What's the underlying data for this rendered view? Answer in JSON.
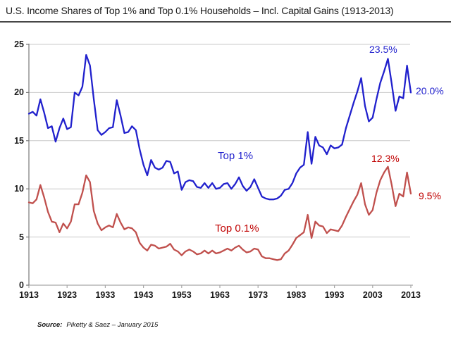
{
  "title": "U.S. Income Shares of Top 1% and Top 0.1% Households – Incl. Capital Gains (1913-2013)",
  "source": {
    "label": "Source:",
    "text": "Piketty & Saez – January 2015"
  },
  "colors": {
    "top1_line": "#2121cd",
    "top1_text": "#2121cd",
    "top01_line": "#c0504d",
    "top01_text": "#c00000",
    "gridline": "#c8c8c8",
    "x_axis": "#a8a8a8",
    "y_axis": "#787878",
    "tick": "#a8a8a8",
    "title_text": "#1a1a1a"
  },
  "chart_data": {
    "type": "line",
    "title": "U.S. Income Shares of Top 1% and Top 0.1% Households – Incl. Capital Gains (1913-2013)",
    "xlabel": "",
    "ylabel": "",
    "xlim": [
      1913,
      2013
    ],
    "ylim": [
      0,
      25
    ],
    "grid": "horizontal",
    "legend": "inline-labels",
    "y_ticks": [
      0,
      5,
      10,
      15,
      20,
      25
    ],
    "x_ticks": [
      1913,
      1923,
      1933,
      1943,
      1953,
      1963,
      1973,
      1983,
      1993,
      2003,
      2013
    ],
    "years": [
      1913,
      1914,
      1915,
      1916,
      1917,
      1918,
      1919,
      1920,
      1921,
      1922,
      1923,
      1924,
      1925,
      1926,
      1927,
      1928,
      1929,
      1930,
      1931,
      1932,
      1933,
      1934,
      1935,
      1936,
      1937,
      1938,
      1939,
      1940,
      1941,
      1942,
      1943,
      1944,
      1945,
      1946,
      1947,
      1948,
      1949,
      1950,
      1951,
      1952,
      1953,
      1954,
      1955,
      1956,
      1957,
      1958,
      1959,
      1960,
      1961,
      1962,
      1963,
      1964,
      1965,
      1966,
      1967,
      1968,
      1969,
      1970,
      1971,
      1972,
      1973,
      1974,
      1975,
      1976,
      1977,
      1978,
      1979,
      1980,
      1981,
      1982,
      1983,
      1984,
      1985,
      1986,
      1987,
      1988,
      1989,
      1990,
      1991,
      1992,
      1993,
      1994,
      1995,
      1996,
      1997,
      1998,
      1999,
      2000,
      2001,
      2002,
      2003,
      2004,
      2005,
      2006,
      2007,
      2008,
      2009,
      2010,
      2011,
      2012,
      2013
    ],
    "series": [
      {
        "name": "Top 1%",
        "color": "#2121cd",
        "values": [
          17.8,
          18.0,
          17.6,
          19.3,
          17.9,
          16.3,
          16.5,
          14.9,
          16.3,
          17.3,
          16.2,
          16.4,
          20.0,
          19.7,
          20.6,
          23.9,
          22.8,
          19.3,
          16.1,
          15.6,
          15.9,
          16.3,
          16.4,
          19.2,
          17.6,
          15.8,
          15.9,
          16.5,
          16.1,
          14.1,
          12.5,
          11.4,
          13.0,
          12.2,
          12.0,
          12.2,
          12.9,
          12.8,
          11.6,
          11.8,
          9.9,
          10.7,
          10.9,
          10.8,
          10.2,
          10.1,
          10.6,
          10.1,
          10.6,
          10.0,
          10.1,
          10.5,
          10.6,
          10.0,
          10.5,
          11.2,
          10.3,
          9.8,
          10.2,
          11.0,
          10.1,
          9.2,
          9.0,
          8.9,
          8.9,
          9.0,
          9.3,
          9.9,
          10.0,
          10.6,
          11.6,
          12.2,
          12.5,
          15.9,
          12.6,
          15.4,
          14.5,
          14.3,
          13.6,
          14.5,
          14.2,
          14.3,
          14.6,
          16.3,
          17.6,
          18.9,
          20.1,
          21.5,
          18.6,
          17.0,
          17.4,
          19.3,
          21.0,
          22.2,
          23.5,
          20.9,
          18.1,
          19.6,
          19.4,
          22.8,
          20.0
        ]
      },
      {
        "name": "Top 0.1%",
        "color": "#c0504d",
        "values": [
          8.6,
          8.5,
          8.9,
          10.4,
          9.1,
          7.6,
          6.6,
          6.5,
          5.5,
          6.4,
          5.9,
          6.6,
          8.4,
          8.4,
          9.6,
          11.4,
          10.7,
          7.7,
          6.4,
          5.7,
          6.0,
          6.2,
          6.0,
          7.4,
          6.5,
          5.8,
          6.0,
          5.9,
          5.5,
          4.4,
          3.9,
          3.6,
          4.2,
          4.1,
          3.8,
          3.9,
          4.0,
          4.3,
          3.7,
          3.5,
          3.1,
          3.5,
          3.7,
          3.5,
          3.2,
          3.3,
          3.6,
          3.3,
          3.6,
          3.3,
          3.4,
          3.6,
          3.8,
          3.6,
          3.9,
          4.1,
          3.7,
          3.4,
          3.5,
          3.8,
          3.7,
          3.0,
          2.8,
          2.8,
          2.7,
          2.6,
          2.7,
          3.3,
          3.6,
          4.2,
          4.9,
          5.2,
          5.5,
          7.3,
          4.9,
          6.6,
          6.2,
          6.1,
          5.4,
          5.8,
          5.7,
          5.6,
          6.2,
          7.1,
          7.9,
          8.7,
          9.4,
          10.6,
          8.4,
          7.3,
          7.8,
          9.6,
          10.9,
          11.7,
          12.3,
          10.4,
          8.2,
          9.5,
          9.2,
          11.7,
          9.5
        ]
      }
    ],
    "annotations": [
      {
        "text": "23.5%",
        "series": "Top 1%",
        "year": 2007,
        "value": 23.5
      },
      {
        "text": "20.0%",
        "series": "Top 1%",
        "year": 2013,
        "value": 20.0
      },
      {
        "text": "12.3%",
        "series": "Top 0.1%",
        "year": 2007,
        "value": 12.3
      },
      {
        "text": "9.5%",
        "series": "Top 0.1%",
        "year": 2013,
        "value": 9.5
      },
      {
        "text": "Top 1%",
        "series": "Top 1%",
        "role": "series-label"
      },
      {
        "text": "Top 0.1%",
        "series": "Top 0.1%",
        "role": "series-label"
      }
    ]
  }
}
